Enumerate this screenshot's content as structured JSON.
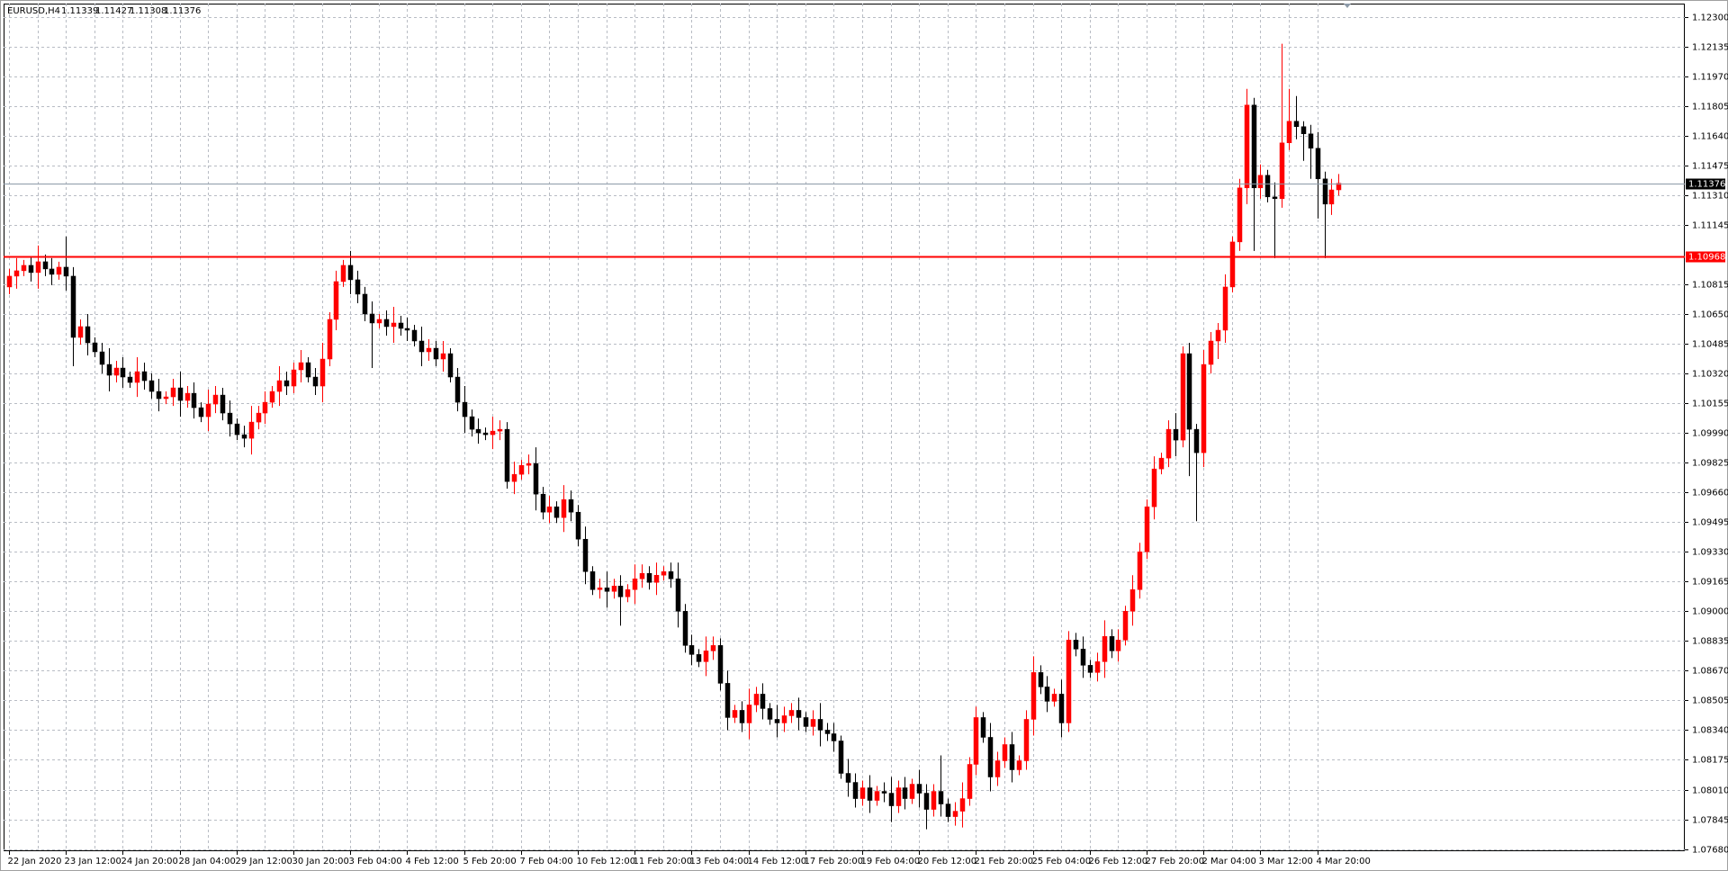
{
  "chart_data": {
    "type": "candlestick",
    "symbol": "EURUSD,H4",
    "header_ohlc": [
      1.11339,
      1.11427,
      1.11308,
      1.11376
    ],
    "up_color": "#ff0000",
    "down_color": "#000000",
    "grid": true,
    "ylim": [
      1.07668,
      1.12373
    ],
    "yticks": [
      {
        "value": 1.123,
        "label": "1.12300"
      },
      1.12135,
      {
        "value": 1.1197,
        "label": "1.11970"
      },
      1.11805,
      {
        "value": 1.1164,
        "label": "1.11640"
      },
      1.11475,
      {
        "value": 1.1131,
        "label": "1.11310"
      },
      1.11145,
      1.10815,
      {
        "value": 1.1065,
        "label": "1.10650"
      },
      1.10485,
      {
        "value": 1.1032,
        "label": "1.10320"
      },
      1.10155,
      {
        "value": 1.0999,
        "label": "1.09990"
      },
      1.09825,
      {
        "value": 1.0966,
        "label": "1.09660"
      },
      1.09495,
      {
        "value": 1.0933,
        "label": "1.09330"
      },
      1.09165,
      {
        "value": 1.09,
        "label": "1.09000"
      },
      1.08835,
      {
        "value": 1.0867,
        "label": "1.08670"
      },
      1.08505,
      {
        "value": 1.0834,
        "label": "1.08340"
      },
      1.08175,
      {
        "value": 1.0801,
        "label": "1.08010"
      },
      1.07845,
      {
        "value": 1.0768,
        "label": "1.07680"
      }
    ],
    "hlines": [
      {
        "value": 1.10968,
        "color": "#ff0000"
      },
      {
        "value": 1.11376,
        "color": "#000000"
      }
    ],
    "categories": [
      "22 Jan 2020",
      null,
      null,
      null,
      null,
      null,
      null,
      null,
      "23 Jan 12:00",
      null,
      null,
      null,
      null,
      null,
      null,
      null,
      "24 Jan 20:00",
      null,
      null,
      null,
      null,
      null,
      null,
      null,
      "28 Jan 04:00",
      null,
      null,
      null,
      null,
      null,
      null,
      null,
      "29 Jan 12:00",
      null,
      null,
      null,
      null,
      null,
      null,
      null,
      "30 Jan 20:00",
      null,
      null,
      null,
      null,
      null,
      null,
      null,
      "3 Feb 04:00",
      null,
      null,
      null,
      null,
      null,
      null,
      null,
      "4 Feb 12:00",
      null,
      null,
      null,
      null,
      null,
      null,
      null,
      "5 Feb 20:00",
      null,
      null,
      null,
      null,
      null,
      null,
      null,
      "7 Feb 04:00",
      null,
      null,
      null,
      null,
      null,
      null,
      null,
      "10 Feb 12:00",
      null,
      null,
      null,
      null,
      null,
      null,
      null,
      "11 Feb 20:00",
      null,
      null,
      null,
      null,
      null,
      null,
      null,
      "13 Feb 04:00",
      null,
      null,
      null,
      null,
      null,
      null,
      null,
      "14 Feb 12:00",
      null,
      null,
      null,
      null,
      null,
      null,
      null,
      "17 Feb 20:00",
      null,
      null,
      null,
      null,
      null,
      null,
      null,
      "19 Feb 04:00",
      null,
      null,
      null,
      null,
      null,
      null,
      null,
      "20 Feb 12:00",
      null,
      null,
      null,
      null,
      null,
      null,
      null,
      "21 Feb 20:00",
      null,
      null,
      null,
      null,
      null,
      null,
      null,
      "25 Feb 04:00",
      null,
      null,
      null,
      null,
      null,
      null,
      null,
      "26 Feb 12:00",
      null,
      null,
      null,
      null,
      null,
      null,
      null,
      "27 Feb 20:00",
      null,
      null,
      null,
      null,
      null,
      null,
      null,
      "2 Mar 04:00",
      null,
      null,
      null,
      null,
      null,
      null,
      null,
      "3 Mar 12:00",
      null,
      null,
      null,
      null,
      null,
      null,
      null,
      "4 Mar 20:00",
      null,
      null,
      null
    ],
    "candles": [
      [
        1.108,
        1.109,
        1.1076,
        1.1086
      ],
      [
        1.1086,
        1.1096,
        1.1079,
        1.1089
      ],
      [
        1.1089,
        1.1095,
        1.1086,
        1.1092
      ],
      [
        1.1092,
        1.1097,
        1.1083,
        1.1088
      ],
      [
        1.1088,
        1.1103,
        1.1079,
        1.1094
      ],
      [
        1.1094,
        1.1098,
        1.1086,
        1.109
      ],
      [
        1.109,
        1.1096,
        1.1081,
        1.1087
      ],
      [
        1.1087,
        1.1094,
        1.1084,
        1.1091
      ],
      [
        1.1091,
        1.1108,
        1.1078,
        1.1086
      ],
      [
        1.1086,
        1.1091,
        1.1036,
        1.1052
      ],
      [
        1.1052,
        1.1062,
        1.1048,
        1.1058
      ],
      [
        1.1058,
        1.1065,
        1.1042,
        1.1049
      ],
      [
        1.1049,
        1.1052,
        1.1041,
        1.1044
      ],
      [
        1.1044,
        1.1049,
        1.1032,
        1.1037
      ],
      [
        1.1037,
        1.1046,
        1.1022,
        1.1031
      ],
      [
        1.1031,
        1.1039,
        1.1027,
        1.1035
      ],
      [
        1.1035,
        1.1041,
        1.1024,
        1.103
      ],
      [
        1.103,
        1.1033,
        1.1024,
        1.1027
      ],
      [
        1.1027,
        1.1041,
        1.1019,
        1.1033
      ],
      [
        1.1033,
        1.1038,
        1.1023,
        1.1028
      ],
      [
        1.1028,
        1.1032,
        1.1018,
        1.1022
      ],
      [
        1.1022,
        1.1029,
        1.1011,
        1.1018
      ],
      [
        1.1018,
        1.1022,
        1.1015,
        1.1019
      ],
      [
        1.1019,
        1.1029,
        1.1014,
        1.1024
      ],
      [
        1.1024,
        1.1033,
        1.1008,
        1.1017
      ],
      [
        1.1017,
        1.1025,
        1.1013,
        1.1021
      ],
      [
        1.1021,
        1.1027,
        1.1007,
        1.1013
      ],
      [
        1.1013,
        1.1016,
        1.1005,
        1.1008
      ],
      [
        1.1008,
        1.1023,
        1.1,
        1.1015
      ],
      [
        1.1015,
        1.1025,
        1.101,
        1.102
      ],
      [
        1.102,
        1.1024,
        1.1006,
        1.101
      ],
      [
        1.101,
        1.1017,
        1.0997,
        1.1004
      ],
      [
        1.1004,
        1.1007,
        1.0995,
        1.0998
      ],
      [
        1.0998,
        1.1003,
        1.0991,
        1.0996
      ],
      [
        1.0996,
        1.1014,
        1.0987,
        1.1005
      ],
      [
        1.1005,
        1.1014,
        1.1001,
        1.101
      ],
      [
        1.101,
        1.1022,
        1.1004,
        1.1016
      ],
      [
        1.1016,
        1.1025,
        1.1013,
        1.1022
      ],
      [
        1.1022,
        1.1036,
        1.1014,
        1.1028
      ],
      [
        1.1028,
        1.1033,
        1.102,
        1.1025
      ],
      [
        1.1025,
        1.1038,
        1.1021,
        1.1034
      ],
      [
        1.1034,
        1.1045,
        1.1027,
        1.1038
      ],
      [
        1.1038,
        1.1041,
        1.1027,
        1.103
      ],
      [
        1.103,
        1.1035,
        1.102,
        1.1025
      ],
      [
        1.1025,
        1.1049,
        1.1016,
        1.104
      ],
      [
        1.104,
        1.1066,
        1.1036,
        1.1062
      ],
      [
        1.1062,
        1.1089,
        1.1056,
        1.1083
      ],
      [
        1.1083,
        1.1095,
        1.108,
        1.1092
      ],
      [
        1.1092,
        1.11,
        1.1076,
        1.1084
      ],
      [
        1.1084,
        1.1089,
        1.1071,
        1.1076
      ],
      [
        1.1076,
        1.108,
        1.1061,
        1.1065
      ],
      [
        1.1065,
        1.1072,
        1.1035,
        1.106
      ],
      [
        1.106,
        1.1065,
        1.1057,
        1.1062
      ],
      [
        1.1062,
        1.1067,
        1.1053,
        1.1058
      ],
      [
        1.1058,
        1.1069,
        1.1049,
        1.106
      ],
      [
        1.106,
        1.1064,
        1.1053,
        1.1057
      ],
      [
        1.1057,
        1.1063,
        1.105,
        1.1056
      ],
      [
        1.1056,
        1.1059,
        1.1047,
        1.105
      ],
      [
        1.105,
        1.1058,
        1.1036,
        1.1044
      ],
      [
        1.1044,
        1.1051,
        1.1039,
        1.1046
      ],
      [
        1.1046,
        1.105,
        1.1036,
        1.104
      ],
      [
        1.104,
        1.105,
        1.1033,
        1.1043
      ],
      [
        1.1043,
        1.1046,
        1.1027,
        1.103
      ],
      [
        1.103,
        1.1035,
        1.1011,
        1.1016
      ],
      [
        1.1016,
        1.1025,
        1.0999,
        1.1008
      ],
      [
        1.1008,
        1.1012,
        1.0997,
        1.1001
      ],
      [
        1.1001,
        1.1007,
        1.0993,
        1.0999
      ],
      [
        1.0999,
        1.1002,
        1.0995,
        1.0998
      ],
      [
        1.0998,
        1.1008,
        1.099,
        1.1
      ],
      [
        1.1,
        1.1006,
        1.0995,
        1.1001
      ],
      [
        1.1001,
        1.1005,
        1.0968,
        1.0972
      ],
      [
        1.0972,
        1.0983,
        1.0965,
        1.0976
      ],
      [
        1.0976,
        1.0984,
        1.0973,
        1.0981
      ],
      [
        1.0981,
        1.0987,
        1.0976,
        1.0982
      ],
      [
        1.0982,
        1.0991,
        1.0956,
        1.0965
      ],
      [
        1.0965,
        1.0969,
        1.0951,
        1.0955
      ],
      [
        1.0955,
        1.0964,
        1.0949,
        1.0958
      ],
      [
        1.0958,
        1.0961,
        1.0949,
        1.0952
      ],
      [
        1.0952,
        1.097,
        1.0944,
        1.0962
      ],
      [
        1.0962,
        1.0967,
        1.095,
        1.0955
      ],
      [
        1.0955,
        1.0959,
        1.0936,
        1.094
      ],
      [
        1.094,
        1.0947,
        1.0915,
        1.0922
      ],
      [
        1.0922,
        1.0925,
        1.0909,
        1.0912
      ],
      [
        1.0912,
        1.0918,
        1.0907,
        1.0913
      ],
      [
        1.0913,
        1.0922,
        1.0902,
        1.0911
      ],
      [
        1.0911,
        1.0918,
        1.0907,
        1.0914
      ],
      [
        1.0914,
        1.092,
        1.0892,
        1.0908
      ],
      [
        1.0908,
        1.0915,
        1.0905,
        1.0912
      ],
      [
        1.0912,
        1.0926,
        1.0904,
        1.0918
      ],
      [
        1.0918,
        1.0926,
        1.0913,
        1.0921
      ],
      [
        1.0921,
        1.0925,
        1.0912,
        1.0916
      ],
      [
        1.0916,
        1.0927,
        1.0909,
        1.092
      ],
      [
        1.092,
        1.0925,
        1.0917,
        1.0922
      ],
      [
        1.0922,
        1.0927,
        1.0913,
        1.0918
      ],
      [
        1.0918,
        1.0927,
        1.0891,
        1.09
      ],
      [
        1.09,
        1.0904,
        1.0877,
        1.0881
      ],
      [
        1.0881,
        1.0887,
        1.087,
        1.0876
      ],
      [
        1.0876,
        1.0879,
        1.0869,
        1.0872
      ],
      [
        1.0872,
        1.0886,
        1.0864,
        1.0878
      ],
      [
        1.0878,
        1.0886,
        1.0873,
        1.0881
      ],
      [
        1.0881,
        1.0885,
        1.0856,
        1.086
      ],
      [
        1.086,
        1.0867,
        1.0834,
        1.0841
      ],
      [
        1.0841,
        1.0848,
        1.0838,
        1.0845
      ],
      [
        1.0845,
        1.085,
        1.0833,
        1.0838
      ],
      [
        1.0838,
        1.0857,
        1.0829,
        1.0848
      ],
      [
        1.0848,
        1.0858,
        1.0844,
        1.0854
      ],
      [
        1.0854,
        1.086,
        1.084,
        1.0846
      ],
      [
        1.0846,
        1.0849,
        1.0837,
        1.084
      ],
      [
        1.084,
        1.0848,
        1.083,
        1.0838
      ],
      [
        1.0838,
        1.0847,
        1.0833,
        1.0842
      ],
      [
        1.0842,
        1.0849,
        1.0838,
        1.0845
      ],
      [
        1.0845,
        1.0852,
        1.0834,
        1.0841
      ],
      [
        1.0841,
        1.0844,
        1.0833,
        1.0836
      ],
      [
        1.0836,
        1.0845,
        1.0831,
        1.084
      ],
      [
        1.084,
        1.0849,
        1.0825,
        1.0834
      ],
      [
        1.0834,
        1.0838,
        1.0828,
        1.0832
      ],
      [
        1.0832,
        1.0838,
        1.0822,
        1.0828
      ],
      [
        1.0828,
        1.0831,
        1.0807,
        1.081
      ],
      [
        1.081,
        1.0818,
        1.0797,
        1.0805
      ],
      [
        1.0805,
        1.081,
        1.0791,
        1.0796
      ],
      [
        1.0796,
        1.0806,
        1.0792,
        1.0802
      ],
      [
        1.0802,
        1.0809,
        1.0788,
        1.0795
      ],
      [
        1.0795,
        1.0803,
        1.0792,
        1.08
      ],
      [
        1.08,
        1.0805,
        1.0794,
        1.0799
      ],
      [
        1.0799,
        1.0808,
        1.0783,
        1.0792
      ],
      [
        1.0792,
        1.0806,
        1.0788,
        1.0802
      ],
      [
        1.0802,
        1.0808,
        1.079,
        1.0796
      ],
      [
        1.0796,
        1.0807,
        1.0793,
        1.0804
      ],
      [
        1.0804,
        1.0812,
        1.0791,
        1.0799
      ],
      [
        1.0799,
        1.0804,
        1.0779,
        1.079
      ],
      [
        1.079,
        1.0804,
        1.0786,
        1.08
      ],
      [
        1.08,
        1.082,
        1.0786,
        1.0793
      ],
      [
        1.0793,
        1.0796,
        1.0783,
        1.0786
      ],
      [
        1.0786,
        1.0794,
        1.0781,
        1.0789
      ],
      [
        1.0789,
        1.0805,
        1.078,
        1.0796
      ],
      [
        1.0796,
        1.0819,
        1.0792,
        1.0815
      ],
      [
        1.0815,
        1.0847,
        1.0809,
        1.0841
      ],
      [
        1.0841,
        1.0844,
        1.0827,
        1.083
      ],
      [
        1.083,
        1.0838,
        1.08,
        1.0808
      ],
      [
        1.0808,
        1.0822,
        1.0803,
        1.0817
      ],
      [
        1.0817,
        1.083,
        1.0813,
        1.0826
      ],
      [
        1.0826,
        1.0833,
        1.0805,
        1.0812
      ],
      [
        1.0812,
        1.082,
        1.0809,
        1.0817
      ],
      [
        1.0817,
        1.0845,
        1.0812,
        1.084
      ],
      [
        1.084,
        1.0875,
        1.0831,
        1.0866
      ],
      [
        1.0866,
        1.087,
        1.0854,
        1.0858
      ],
      [
        1.0858,
        1.0864,
        1.0844,
        1.085
      ],
      [
        1.085,
        1.0857,
        1.0847,
        1.0854
      ],
      [
        1.0854,
        1.0862,
        1.083,
        1.0838
      ],
      [
        1.0838,
        1.0889,
        1.0833,
        1.0884
      ],
      [
        1.0884,
        1.0888,
        1.0875,
        1.0879
      ],
      [
        1.0879,
        1.0886,
        1.0863,
        1.087
      ],
      [
        1.087,
        1.0873,
        1.0863,
        1.0866
      ],
      [
        1.0866,
        1.0877,
        1.0861,
        1.0872
      ],
      [
        1.0872,
        1.0895,
        1.0863,
        1.0886
      ],
      [
        1.0886,
        1.089,
        1.0874,
        1.0878
      ],
      [
        1.0878,
        1.089,
        1.0872,
        1.0884
      ],
      [
        1.0884,
        1.0903,
        1.0881,
        1.09
      ],
      [
        1.09,
        1.092,
        1.0892,
        1.0912
      ],
      [
        1.0912,
        1.0938,
        1.0907,
        1.0933
      ],
      [
        1.0933,
        1.0962,
        1.0929,
        1.0958
      ],
      [
        1.0958,
        1.0986,
        1.0951,
        1.0979
      ],
      [
        1.0979,
        1.0988,
        1.0976,
        1.0985
      ],
      [
        1.0985,
        1.1006,
        1.098,
        1.1001
      ],
      [
        1.1001,
        1.101,
        1.0986,
        1.0995
      ],
      [
        1.0995,
        1.1047,
        1.0991,
        1.1043
      ],
      [
        1.1043,
        1.1049,
        1.0975,
        1.1001
      ],
      [
        1.1001,
        1.1004,
        1.095,
        1.0988
      ],
      [
        1.0988,
        1.1045,
        1.098,
        1.1037
      ],
      [
        1.1037,
        1.1055,
        1.1032,
        1.105
      ],
      [
        1.105,
        1.106,
        1.104,
        1.1056
      ],
      [
        1.1056,
        1.1087,
        1.1049,
        1.108
      ],
      [
        1.108,
        1.1108,
        1.1077,
        1.1105
      ],
      [
        1.1105,
        1.114,
        1.11,
        1.1135
      ],
      [
        1.1135,
        1.119,
        1.1126,
        1.1181
      ],
      [
        1.1181,
        1.1185,
        1.11,
        1.1135
      ],
      [
        1.1135,
        1.1148,
        1.1129,
        1.1142
      ],
      [
        1.1142,
        1.1145,
        1.1127,
        1.113
      ],
      [
        1.113,
        1.1138,
        1.1096,
        1.1129
      ],
      [
        1.1129,
        1.1215,
        1.1124,
        1.116
      ],
      [
        1.116,
        1.119,
        1.1156,
        1.1172
      ],
      [
        1.1172,
        1.1186,
        1.1162,
        1.1169
      ],
      [
        1.1169,
        1.1172,
        1.115,
        1.1165
      ],
      [
        1.1165,
        1.117,
        1.114,
        1.1157
      ],
      [
        1.1157,
        1.1166,
        1.1118,
        1.114
      ],
      [
        1.114,
        1.1144,
        1.1096,
        1.1126
      ],
      [
        1.1126,
        1.114,
        1.112,
        1.11339
      ],
      [
        1.11339,
        1.11427,
        1.11308,
        1.11376
      ]
    ]
  }
}
